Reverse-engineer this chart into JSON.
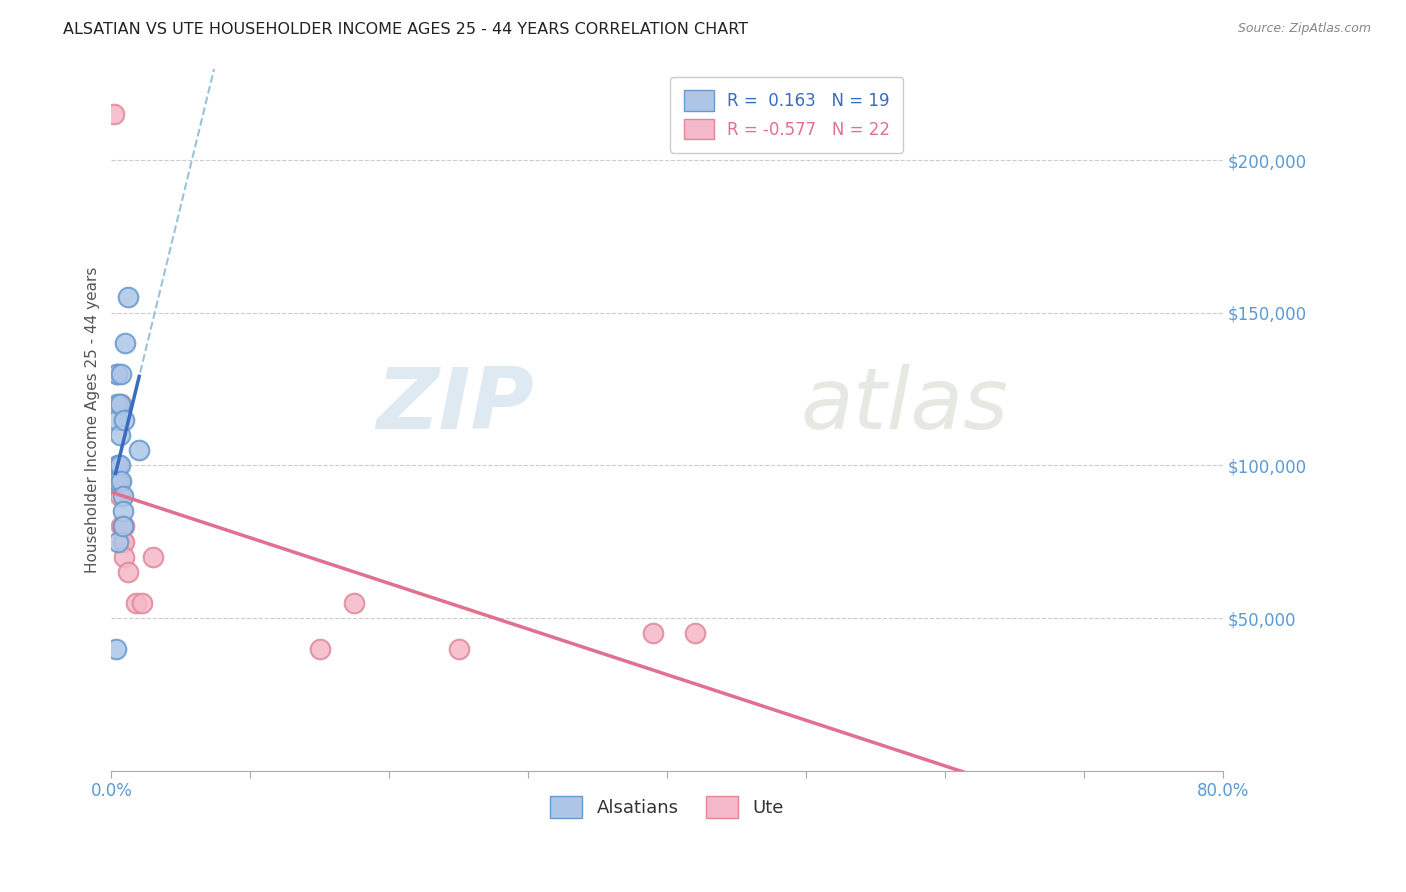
{
  "title": "ALSATIAN VS UTE HOUSEHOLDER INCOME AGES 25 - 44 YEARS CORRELATION CHART",
  "source": "Source: ZipAtlas.com",
  "ylabel": "Householder Income Ages 25 - 44 years",
  "xlim": [
    0.0,
    0.8
  ],
  "ylim": [
    0,
    230000
  ],
  "xticks": [
    0.0,
    0.1,
    0.2,
    0.3,
    0.4,
    0.5,
    0.6,
    0.7,
    0.8
  ],
  "xticklabels": [
    "0.0%",
    "",
    "",
    "",
    "",
    "",
    "",
    "",
    "80.0%"
  ],
  "yticks_right": [
    50000,
    100000,
    150000,
    200000
  ],
  "ytick_labels_right": [
    "$50,000",
    "$100,000",
    "$150,000",
    "$200,000"
  ],
  "legend_r_alsatian": "0.163",
  "legend_n_alsatian": "19",
  "legend_r_ute": "-0.577",
  "legend_n_ute": "22",
  "alsatian_color": "#adc6e8",
  "alsatian_edge_color": "#6699cc",
  "alsatian_line_color": "#3a6bbf",
  "ute_color": "#f5b8c8",
  "ute_edge_color": "#e08898",
  "ute_line_color": "#e07090",
  "dashed_line_color": "#99c4d8",
  "watermark_zip": "ZIP",
  "watermark_atlas": "atlas",
  "alsatians_x": [
    0.003,
    0.004,
    0.004,
    0.004,
    0.005,
    0.005,
    0.005,
    0.006,
    0.006,
    0.006,
    0.007,
    0.007,
    0.008,
    0.008,
    0.008,
    0.009,
    0.01,
    0.012,
    0.02
  ],
  "alsatians_y": [
    40000,
    130000,
    120000,
    115000,
    100000,
    95000,
    75000,
    120000,
    110000,
    100000,
    130000,
    95000,
    90000,
    85000,
    80000,
    115000,
    140000,
    155000,
    105000
  ],
  "ute_x": [
    0.002,
    0.004,
    0.005,
    0.005,
    0.006,
    0.006,
    0.007,
    0.007,
    0.008,
    0.008,
    0.009,
    0.009,
    0.009,
    0.012,
    0.018,
    0.022,
    0.03,
    0.15,
    0.175,
    0.25,
    0.39,
    0.42
  ],
  "ute_y": [
    215000,
    130000,
    100000,
    95000,
    95000,
    90000,
    120000,
    80000,
    80000,
    75000,
    80000,
    75000,
    70000,
    65000,
    55000,
    55000,
    70000,
    40000,
    55000,
    40000,
    45000,
    45000
  ]
}
